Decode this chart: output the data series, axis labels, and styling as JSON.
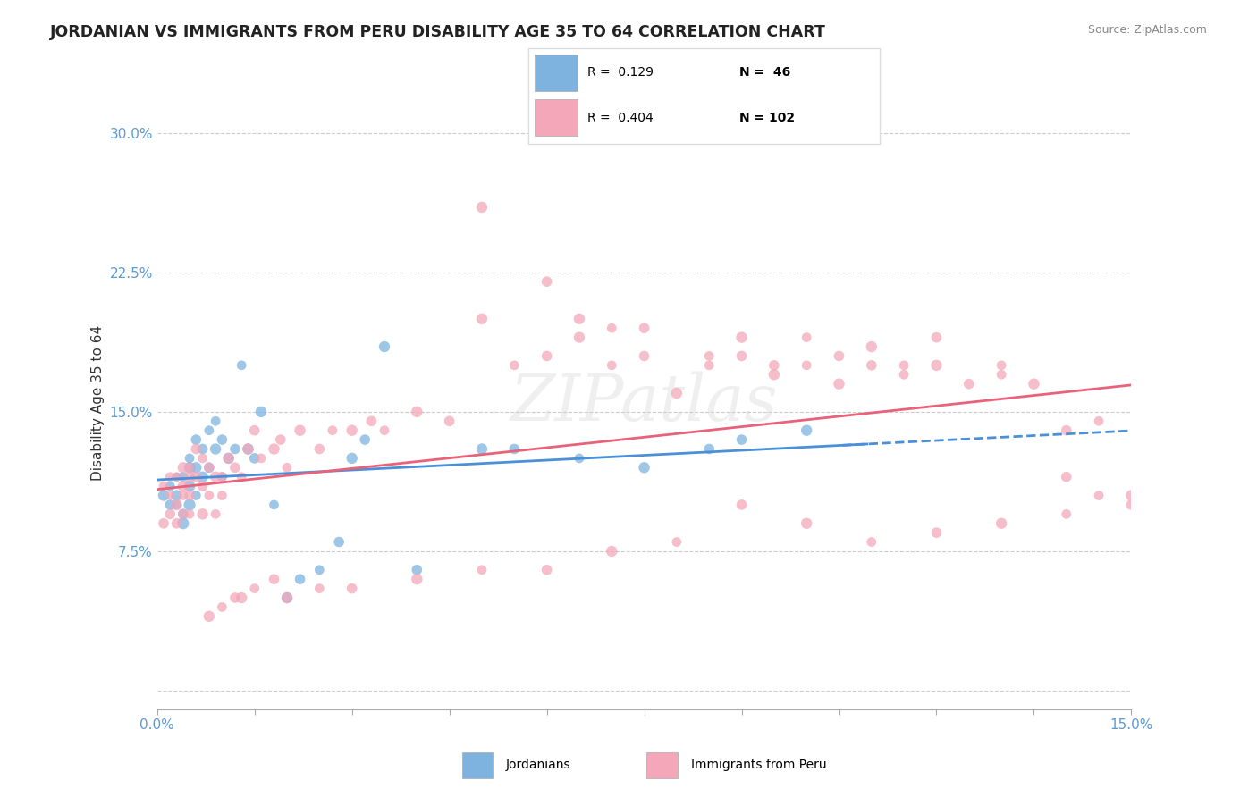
{
  "title": "JORDANIAN VS IMMIGRANTS FROM PERU DISABILITY AGE 35 TO 64 CORRELATION CHART",
  "source": "Source: ZipAtlas.com",
  "xlabel": "",
  "ylabel": "Disability Age 35 to 64",
  "xlim": [
    0.0,
    0.15
  ],
  "ylim": [
    -0.01,
    0.32
  ],
  "xticks": [
    0.0,
    0.015,
    0.03,
    0.045,
    0.06,
    0.075,
    0.09,
    0.105,
    0.12,
    0.135,
    0.15
  ],
  "xticklabels": [
    "0.0%",
    "",
    "",
    "",
    "",
    "",
    "",
    "",
    "",
    "",
    "15.0%"
  ],
  "yticks": [
    0.0,
    0.075,
    0.15,
    0.225,
    0.3
  ],
  "yticklabels": [
    "",
    "7.5%",
    "15.0%",
    "22.5%",
    "30.0%"
  ],
  "legend_r1": "R =  0.129",
  "legend_n1": "N =  46",
  "legend_r2": "R =  0.404",
  "legend_n2": "N = 102",
  "blue_color": "#7eb3e0",
  "pink_color": "#f4a7b9",
  "trend_blue": "#4a90d9",
  "trend_pink": "#e8627a",
  "watermark": "ZIPatlas",
  "jordanians_x": [
    0.001,
    0.002,
    0.002,
    0.003,
    0.003,
    0.003,
    0.004,
    0.004,
    0.004,
    0.005,
    0.005,
    0.005,
    0.005,
    0.006,
    0.006,
    0.006,
    0.007,
    0.007,
    0.008,
    0.008,
    0.009,
    0.009,
    0.01,
    0.01,
    0.011,
    0.012,
    0.013,
    0.014,
    0.015,
    0.016,
    0.018,
    0.02,
    0.022,
    0.025,
    0.028,
    0.03,
    0.032,
    0.035,
    0.04,
    0.05,
    0.055,
    0.065,
    0.075,
    0.085,
    0.09,
    0.1
  ],
  "jordanians_y": [
    0.105,
    0.11,
    0.1,
    0.115,
    0.1,
    0.105,
    0.09,
    0.095,
    0.115,
    0.12,
    0.125,
    0.11,
    0.1,
    0.135,
    0.12,
    0.105,
    0.13,
    0.115,
    0.14,
    0.12,
    0.145,
    0.13,
    0.135,
    0.115,
    0.125,
    0.13,
    0.175,
    0.13,
    0.125,
    0.15,
    0.1,
    0.05,
    0.06,
    0.065,
    0.08,
    0.125,
    0.135,
    0.185,
    0.065,
    0.13,
    0.13,
    0.125,
    0.12,
    0.13,
    0.135,
    0.14
  ],
  "jordanians_sizes": [
    80,
    60,
    70,
    50,
    60,
    80,
    90,
    70,
    60,
    80,
    60,
    80,
    90,
    70,
    80,
    60,
    70,
    80,
    60,
    70,
    60,
    80,
    70,
    60,
    80,
    70,
    60,
    80,
    70,
    80,
    60,
    80,
    70,
    60,
    70,
    80,
    70,
    80,
    70,
    80,
    70,
    60,
    80,
    70,
    70,
    80
  ],
  "peru_x": [
    0.001,
    0.001,
    0.002,
    0.002,
    0.002,
    0.003,
    0.003,
    0.003,
    0.004,
    0.004,
    0.004,
    0.004,
    0.005,
    0.005,
    0.005,
    0.005,
    0.006,
    0.006,
    0.007,
    0.007,
    0.007,
    0.008,
    0.008,
    0.009,
    0.009,
    0.01,
    0.01,
    0.011,
    0.012,
    0.013,
    0.014,
    0.015,
    0.016,
    0.018,
    0.019,
    0.02,
    0.022,
    0.025,
    0.027,
    0.03,
    0.033,
    0.035,
    0.04,
    0.045,
    0.05,
    0.055,
    0.06,
    0.065,
    0.07,
    0.075,
    0.08,
    0.085,
    0.09,
    0.095,
    0.1,
    0.105,
    0.11,
    0.115,
    0.12,
    0.13,
    0.05,
    0.06,
    0.07,
    0.065,
    0.075,
    0.085,
    0.09,
    0.095,
    0.1,
    0.105,
    0.11,
    0.115,
    0.12,
    0.125,
    0.13,
    0.135,
    0.14,
    0.145,
    0.14,
    0.145,
    0.15,
    0.15,
    0.14,
    0.13,
    0.12,
    0.11,
    0.1,
    0.09,
    0.08,
    0.07,
    0.06,
    0.05,
    0.04,
    0.03,
    0.025,
    0.02,
    0.018,
    0.015,
    0.013,
    0.012,
    0.01,
    0.008
  ],
  "peru_y": [
    0.11,
    0.09,
    0.105,
    0.095,
    0.115,
    0.1,
    0.09,
    0.115,
    0.12,
    0.105,
    0.095,
    0.11,
    0.12,
    0.105,
    0.115,
    0.095,
    0.13,
    0.115,
    0.125,
    0.11,
    0.095,
    0.105,
    0.12,
    0.115,
    0.095,
    0.115,
    0.105,
    0.125,
    0.12,
    0.115,
    0.13,
    0.14,
    0.125,
    0.13,
    0.135,
    0.12,
    0.14,
    0.13,
    0.14,
    0.14,
    0.145,
    0.14,
    0.15,
    0.145,
    0.2,
    0.175,
    0.18,
    0.19,
    0.175,
    0.18,
    0.16,
    0.175,
    0.18,
    0.17,
    0.19,
    0.18,
    0.185,
    0.175,
    0.19,
    0.17,
    0.26,
    0.22,
    0.195,
    0.2,
    0.195,
    0.18,
    0.19,
    0.175,
    0.175,
    0.165,
    0.175,
    0.17,
    0.175,
    0.165,
    0.175,
    0.165,
    0.14,
    0.145,
    0.115,
    0.105,
    0.105,
    0.1,
    0.095,
    0.09,
    0.085,
    0.08,
    0.09,
    0.1,
    0.08,
    0.075,
    0.065,
    0.065,
    0.06,
    0.055,
    0.055,
    0.05,
    0.06,
    0.055,
    0.05,
    0.05,
    0.045,
    0.04
  ],
  "peru_sizes": [
    60,
    70,
    50,
    70,
    60,
    80,
    70,
    60,
    80,
    60,
    70,
    80,
    60,
    70,
    80,
    60,
    70,
    80,
    60,
    70,
    80,
    60,
    70,
    80,
    60,
    70,
    60,
    80,
    70,
    60,
    80,
    70,
    60,
    80,
    70,
    60,
    80,
    70,
    60,
    80,
    70,
    60,
    80,
    70,
    80,
    60,
    70,
    80,
    60,
    70,
    80,
    60,
    70,
    80,
    60,
    70,
    80,
    60,
    70,
    60,
    80,
    70,
    60,
    80,
    70,
    60,
    80,
    70,
    60,
    80,
    70,
    60,
    80,
    70,
    60,
    80,
    70,
    60,
    70,
    60,
    80,
    70,
    60,
    80,
    70,
    60,
    80,
    70,
    60,
    80,
    70,
    60,
    80,
    70,
    60,
    80,
    70,
    60,
    80,
    70,
    60,
    80
  ]
}
